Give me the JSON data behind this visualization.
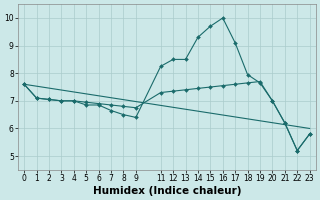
{
  "background_color": "#cce8e8",
  "grid_color": "#aacccc",
  "line_color": "#1a6b6b",
  "xlabel": "Humidex (Indice chaleur)",
  "xlim": [
    -0.5,
    23.5
  ],
  "ylim": [
    4.5,
    10.5
  ],
  "yticks": [
    5,
    6,
    7,
    8,
    9,
    10
  ],
  "xtick_positions": [
    0,
    1,
    2,
    3,
    4,
    5,
    6,
    7,
    8,
    9,
    11,
    12,
    13,
    14,
    15,
    16,
    17,
    18,
    19,
    20,
    21,
    22,
    23
  ],
  "xtick_labels": [
    "0",
    "1",
    "2",
    "3",
    "4",
    "5",
    "6",
    "7",
    "8",
    "9",
    "11",
    "12",
    "13",
    "14",
    "15",
    "16",
    "17",
    "18",
    "19",
    "20",
    "21",
    "22",
    "23"
  ],
  "line1_x": [
    0,
    1,
    2,
    3,
    4,
    5,
    6,
    7,
    8,
    9,
    11,
    12,
    13,
    14,
    15,
    16,
    17,
    18,
    19,
    20,
    21,
    22,
    23
  ],
  "line1_y": [
    7.6,
    7.1,
    7.05,
    7.0,
    7.0,
    6.85,
    6.85,
    6.65,
    6.5,
    6.4,
    8.25,
    8.5,
    8.5,
    9.3,
    9.7,
    10.0,
    9.1,
    7.95,
    7.65,
    7.0,
    6.2,
    5.2,
    5.8
  ],
  "line2_x": [
    0,
    1,
    2,
    3,
    4,
    5,
    6,
    7,
    8,
    9,
    11,
    12,
    13,
    14,
    15,
    16,
    17,
    18,
    19,
    20,
    21,
    22,
    23
  ],
  "line2_y": [
    7.6,
    7.1,
    7.05,
    7.0,
    7.0,
    6.95,
    6.9,
    6.85,
    6.8,
    6.75,
    7.3,
    7.35,
    7.4,
    7.45,
    7.5,
    7.55,
    7.6,
    7.65,
    7.7,
    7.0,
    6.2,
    5.2,
    5.8
  ],
  "line3_x": [
    0,
    23
  ],
  "line3_y": [
    7.6,
    6.0
  ],
  "marker_size": 2.0,
  "lw": 0.8,
  "tick_fontsize": 5.5,
  "xlabel_fontsize": 7.5
}
